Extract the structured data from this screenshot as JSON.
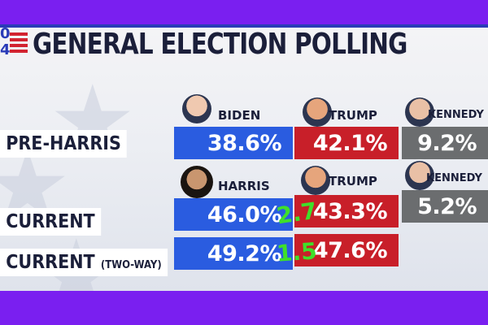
{
  "header": {
    "logo_digits": [
      "0",
      "4"
    ],
    "title": "GENERAL ELECTION POLLING"
  },
  "rows": [
    {
      "label": "PRE-HARRIS",
      "qualifier": ""
    },
    {
      "label": "CURRENT",
      "qualifier": ""
    },
    {
      "label": "CURRENT",
      "qualifier": "(TWO-WAY)"
    }
  ],
  "candidates": {
    "pre": [
      "BIDEN",
      "TRUMP",
      "KENNEDY"
    ],
    "current": [
      "HARRIS",
      "TRUMP",
      "KENNEDY"
    ]
  },
  "values": {
    "pre_harris": {
      "biden": "38.6%",
      "trump": "42.1%",
      "kennedy": "9.2%"
    },
    "current": {
      "harris": "46.0%",
      "trump": "43.3%",
      "kennedy": "5.2%"
    },
    "current_two_way": {
      "harris": "49.2%",
      "trump": "47.6%"
    }
  },
  "annotations": {
    "gap_current": "2.7",
    "gap_two_way": "1.5"
  },
  "colors": {
    "dem": "#2a5ce0",
    "rep": "#c81f29",
    "ind": "#6b6d6f",
    "frame": "#7a1ff0",
    "note": "#3fe02a"
  }
}
